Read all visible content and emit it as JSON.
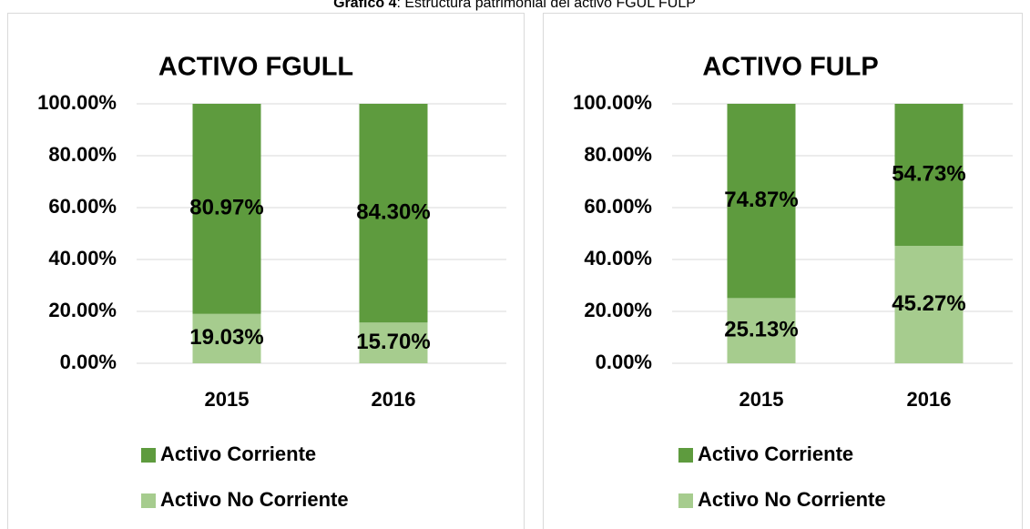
{
  "page_title": {
    "label": "Gráfico 4",
    "text": ": Estructura patrimonial del activo FGUL FULP"
  },
  "chart_data": [
    {
      "type": "bar",
      "stacked": true,
      "title": "ACTIVO FGULL",
      "categories": [
        "2015",
        "2016"
      ],
      "series": [
        {
          "name": "Activo Corriente",
          "color": "#5e9b3e",
          "values": [
            80.97,
            84.3
          ],
          "value_labels": [
            "80.97%",
            "84.30%"
          ]
        },
        {
          "name": "Activo No Corriente",
          "color": "#a6cc8e",
          "values": [
            19.03,
            15.7
          ],
          "value_labels": [
            "19.03%",
            "15.70%"
          ]
        }
      ],
      "ylim": [
        0,
        100
      ],
      "yticks": [
        {
          "value": 0,
          "label": "0.00%"
        },
        {
          "value": 20,
          "label": "20.00%"
        },
        {
          "value": 40,
          "label": "40.00%"
        },
        {
          "value": 60,
          "label": "60.00%"
        },
        {
          "value": 80,
          "label": "80.00%"
        },
        {
          "value": 100,
          "label": "100.00%"
        }
      ],
      "grid": true,
      "legend": "bottom"
    },
    {
      "type": "bar",
      "stacked": true,
      "title": "ACTIVO FULP",
      "categories": [
        "2015",
        "2016"
      ],
      "series": [
        {
          "name": "Activo Corriente",
          "color": "#5e9b3e",
          "values": [
            74.87,
            54.73
          ],
          "value_labels": [
            "74.87%",
            "54.73%"
          ]
        },
        {
          "name": "Activo No Corriente",
          "color": "#a6cc8e",
          "values": [
            25.13,
            45.27
          ],
          "value_labels": [
            "25.13%",
            "45.27%"
          ]
        }
      ],
      "ylim": [
        0,
        100
      ],
      "yticks": [
        {
          "value": 0,
          "label": "0.00%"
        },
        {
          "value": 20,
          "label": "20.00%"
        },
        {
          "value": 40,
          "label": "40.00%"
        },
        {
          "value": 60,
          "label": "60.00%"
        },
        {
          "value": 80,
          "label": "80.00%"
        },
        {
          "value": 100,
          "label": "100.00%"
        }
      ],
      "grid": true,
      "legend": "bottom"
    }
  ]
}
